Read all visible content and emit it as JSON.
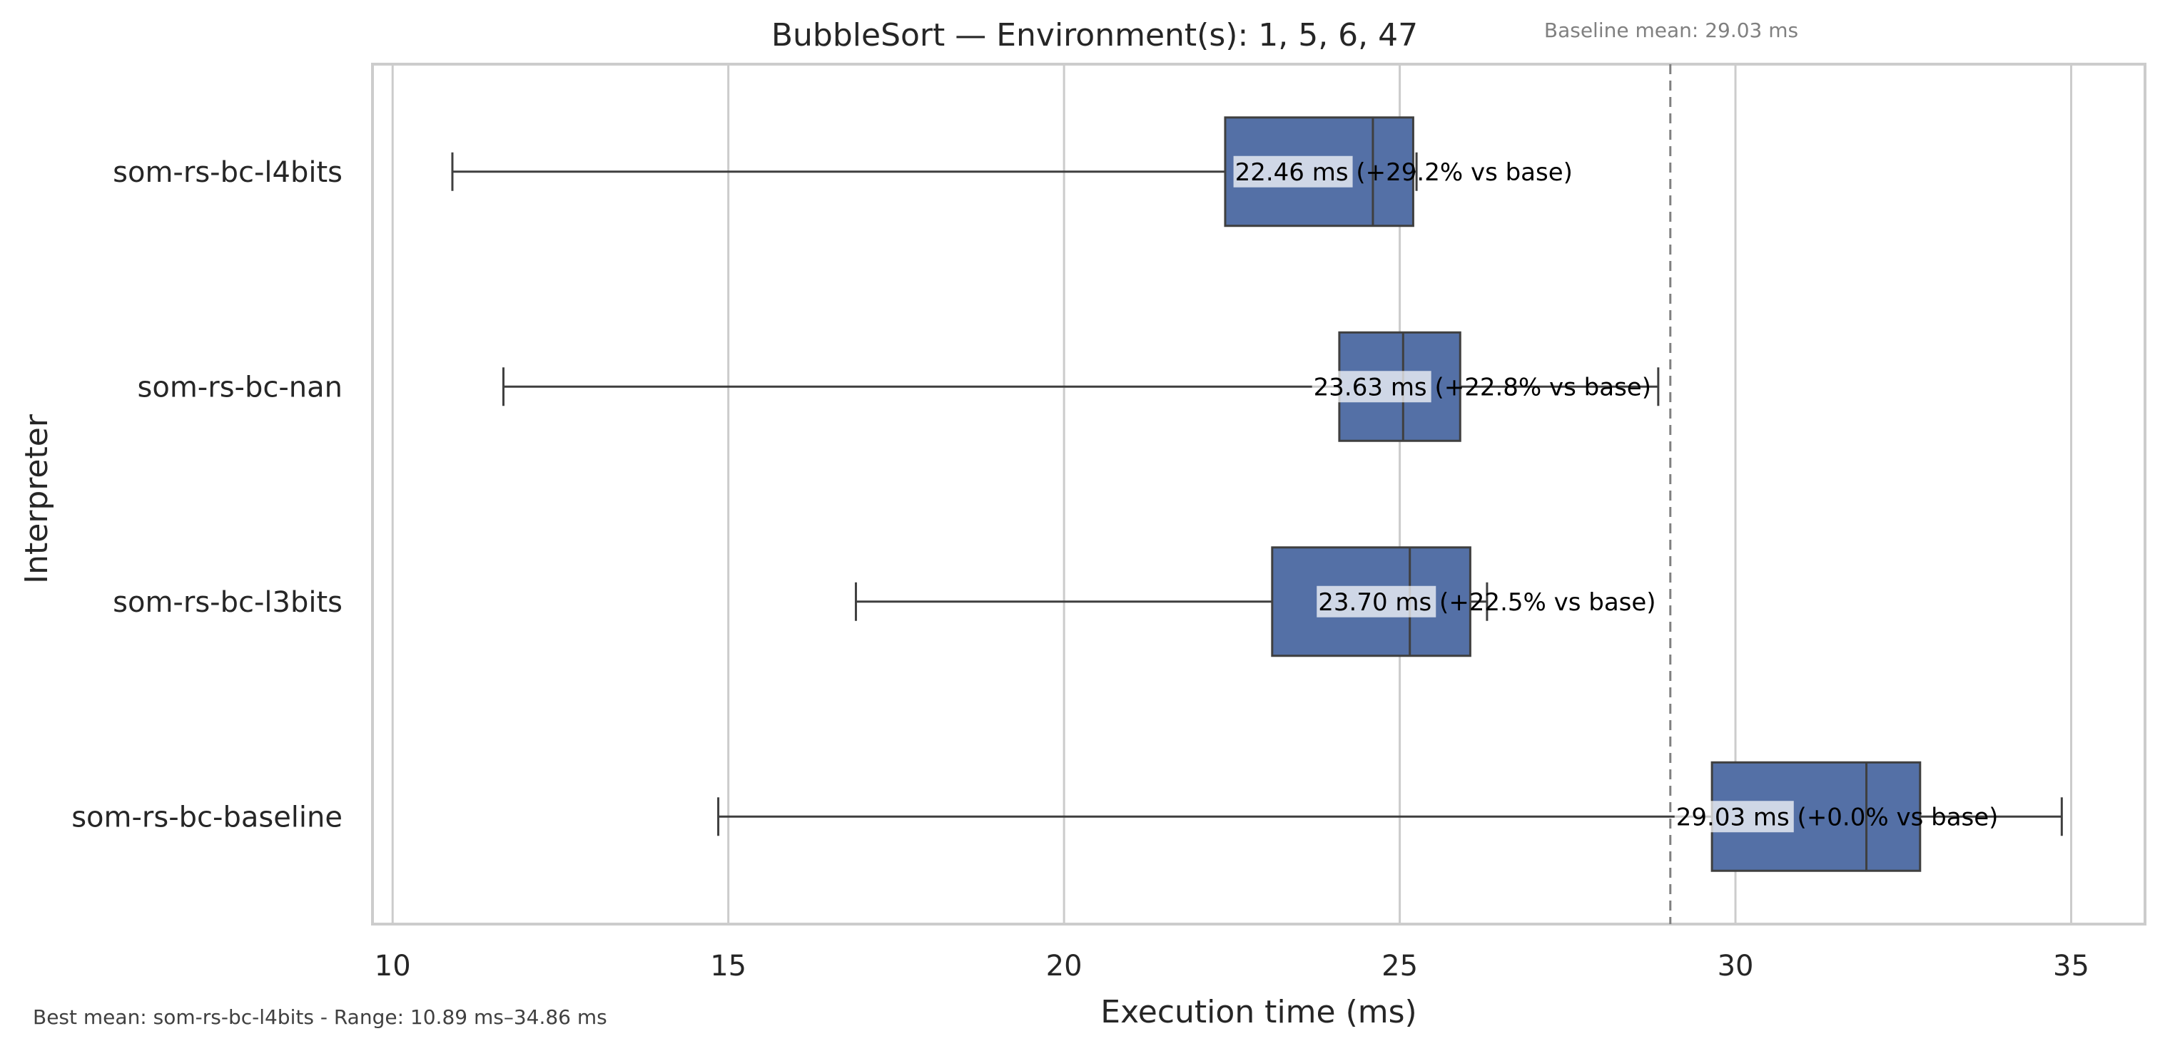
{
  "chart_data": {
    "type": "box",
    "orientation": "horizontal",
    "title": "BubbleSort — Environment(s): 1, 5, 6, 47",
    "xlabel": "Execution time (ms)",
    "ylabel": "Interpreter",
    "xlim": [
      9.7,
      36.1
    ],
    "xticks": [
      10,
      15,
      20,
      25,
      30,
      35
    ],
    "grid": "vertical",
    "box_color": "#5470a6",
    "categories": [
      "som-rs-bc-l4bits",
      "som-rs-bc-nan",
      "som-rs-bc-l3bits",
      "som-rs-bc-baseline"
    ],
    "series": [
      {
        "category": "som-rs-bc-l4bits",
        "whisker_low": 10.89,
        "q1": 22.4,
        "median": 24.6,
        "q3": 25.2,
        "whisker_high": 25.25,
        "mean": 22.46,
        "label": "22.46 ms  (+29.2% vs base)"
      },
      {
        "category": "som-rs-bc-nan",
        "whisker_low": 11.65,
        "q1": 24.1,
        "median": 25.05,
        "q3": 25.9,
        "whisker_high": 28.85,
        "mean": 23.63,
        "label": "23.63 ms  (+22.8% vs base)"
      },
      {
        "category": "som-rs-bc-l3bits",
        "whisker_low": 16.9,
        "q1": 23.1,
        "median": 25.15,
        "q3": 26.05,
        "whisker_high": 26.3,
        "mean": 23.7,
        "label": "23.70 ms  (+22.5% vs base)"
      },
      {
        "category": "som-rs-bc-baseline",
        "whisker_low": 14.85,
        "q1": 29.65,
        "median": 31.95,
        "q3": 32.75,
        "whisker_high": 34.86,
        "mean": 29.03,
        "label": "29.03 ms  (+0.0% vs base)"
      }
    ],
    "baseline": {
      "value": 29.03,
      "label": "Baseline mean: 29.03 ms"
    },
    "footer": "Best mean: som-rs-bc-l4bits - Range: 10.89 ms–34.86 ms"
  }
}
